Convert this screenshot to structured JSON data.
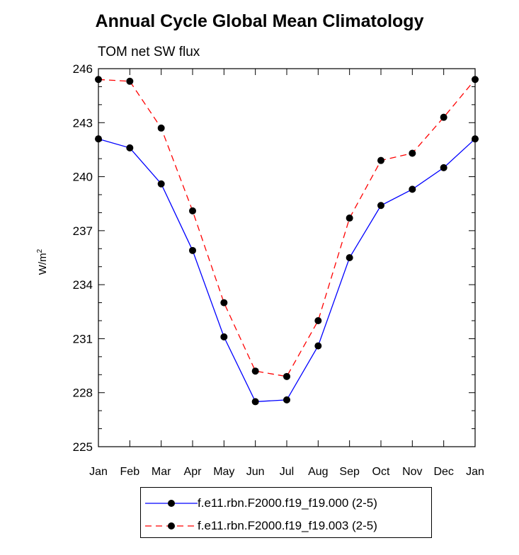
{
  "chart_data": {
    "type": "line",
    "title": "Annual Cycle Global Mean Climatology",
    "subtitle": "TOM net SW flux",
    "ylabel": "W/m",
    "ylabel_sup": "2",
    "categories": [
      "Jan",
      "Feb",
      "Mar",
      "Apr",
      "May",
      "Jun",
      "Jul",
      "Aug",
      "Sep",
      "Oct",
      "Nov",
      "Dec",
      "Jan"
    ],
    "ylim": [
      225,
      246
    ],
    "yticks": [
      225,
      228,
      231,
      234,
      237,
      240,
      243,
      246
    ],
    "grid": false,
    "legend_position": "bottom",
    "series": [
      {
        "name": "f.e11.rbn.F2000.f19_f19.000 (2-5)",
        "color": "#0000ff",
        "dash": "solid",
        "values": [
          242.1,
          241.6,
          239.6,
          235.9,
          231.1,
          227.5,
          227.6,
          230.6,
          235.5,
          238.4,
          239.3,
          240.5,
          242.1
        ]
      },
      {
        "name": "f.e11.rbn.F2000.f19_f19.003 (2-5)",
        "color": "#ff0000",
        "dash": "dashed",
        "values": [
          245.4,
          245.3,
          242.7,
          238.1,
          233.0,
          229.2,
          228.9,
          232.0,
          237.7,
          240.9,
          241.3,
          243.3,
          245.4
        ]
      }
    ]
  }
}
